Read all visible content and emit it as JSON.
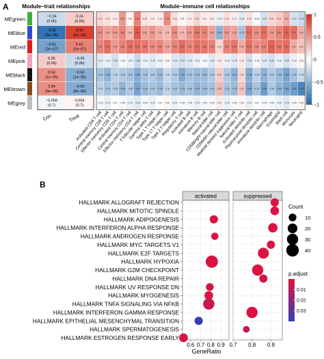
{
  "panel_a": {
    "letter": "A",
    "title_trait": "Module−trait relationships",
    "title_immune": "Module−immune cell relationships",
    "modules": [
      "MEgreen",
      "MEblue",
      "MEred",
      "MEpink",
      "MEblack",
      "MEbrown",
      "MEgrey"
    ],
    "module_colors": [
      "#3cae3c",
      "#2f4bd6",
      "#e11b1b",
      "#f2a2b8",
      "#111111",
      "#8b4a1c",
      "#bdbdbd"
    ],
    "trait_columns": [
      "Con",
      "Treat"
    ],
    "trait_cells": [
      [
        {
          "r": "−0.24",
          "p": "(0.06)",
          "v": -0.24
        },
        {
          "r": "0.24",
          "p": "(0.06)",
          "v": 0.24
        }
      ],
      [
        {
          "r": "−0.92",
          "p": "(5e−26)",
          "v": -0.92
        },
        {
          "r": "0.92",
          "p": "(5e−26)",
          "v": 0.92
        }
      ],
      [
        {
          "r": "−0.61",
          "p": "(2e−07)",
          "v": -0.61
        },
        {
          "r": "0.61",
          "p": "(2e−07)",
          "v": 0.61
        }
      ],
      [
        {
          "r": "0.25",
          "p": "(0.06)",
          "v": 0.25
        },
        {
          "r": "−0.25",
          "p": "(0.06)",
          "v": -0.25
        }
      ],
      [
        {
          "r": "0.53",
          "p": "(1e−05)",
          "v": 0.53
        },
        {
          "r": "−0.53",
          "p": "(1e−05)",
          "v": -0.53
        }
      ],
      [
        {
          "r": "0.54",
          "p": "(9e−06)",
          "v": 0.54
        },
        {
          "r": "−0.54",
          "p": "(9e−06)",
          "v": -0.54
        }
      ],
      [
        {
          "r": "−0.058",
          "p": "(0.7)",
          "v": -0.058
        },
        {
          "r": "0.058",
          "p": "(0.7)",
          "v": 0.058
        }
      ]
    ],
    "immune_cells": [
      "Activated CD8 T cell",
      "Central memory CD8 T cell",
      "Effector memeory CD8 T cell",
      "Activated CD4 T cell",
      "Central memory CD4 T cell",
      "Effector memeory CD4 T cell",
      "T follicular helper cell",
      "Gamma delta T cell",
      "Type 1 T helper cell",
      "Type 17 T helper cell",
      "Type 2 T helper cell",
      "Regulatory T cell",
      "Activated B cell",
      "Immature B cell",
      "Memory B cell",
      "Natural killer cell",
      "CD56bright natural killer cell",
      "CD56dim natural killer cell",
      "Myeloid derived suppressor cell",
      "Natural killer T cell",
      "Activated dendritic cell",
      "Plasmacytoid dendritic cell",
      "Immature dendritic cell",
      "Macrophage",
      "Eosinophil",
      "Mast cell",
      "Monocyte",
      "Neutrophil"
    ],
    "immune_values": [
      [
        0.2,
        0.15,
        0.1,
        0.5,
        0.05,
        0.6,
        0.15,
        0.1,
        0.1,
        0.55,
        0.15,
        0.05,
        0.1,
        0.2,
        0.1,
        0.1,
        -0.1,
        0.15,
        0.1,
        -0.15,
        0.15,
        -0.05,
        -0.2,
        0.2,
        0.25,
        0.4,
        -0.2,
        -0.25
      ],
      [
        0.55,
        0.45,
        0.5,
        0.6,
        0.35,
        0.8,
        0.45,
        0.5,
        0.4,
        0.35,
        0.55,
        0.35,
        0.5,
        0.65,
        0.6,
        0.45,
        -0.5,
        0.5,
        0.45,
        -0.4,
        0.7,
        0.55,
        0.7,
        0.5,
        0.6,
        0.75,
        0.7,
        0.4
      ],
      [
        0.6,
        0.7,
        0.5,
        0.6,
        0.7,
        0.7,
        0.65,
        0.55,
        0.6,
        0.45,
        0.6,
        0.7,
        0.6,
        0.7,
        0.65,
        0.6,
        0.2,
        0.6,
        0.65,
        0.4,
        0.7,
        0.55,
        0.6,
        0.75,
        0.65,
        0.7,
        0.4,
        0.3
      ],
      [
        -0.15,
        -0.1,
        -0.2,
        -0.05,
        -0.1,
        -0.25,
        -0.1,
        -0.15,
        -0.1,
        0.05,
        -0.15,
        -0.2,
        -0.15,
        -0.1,
        -0.05,
        -0.15,
        0.1,
        -0.1,
        -0.15,
        0.1,
        -0.2,
        -0.05,
        -0.15,
        -0.2,
        -0.1,
        -0.2,
        -0.1,
        0.05
      ],
      [
        -0.4,
        -0.5,
        -0.3,
        -0.35,
        -0.4,
        -0.55,
        -0.4,
        -0.35,
        -0.45,
        -0.25,
        -0.35,
        -0.55,
        -0.4,
        -0.45,
        -0.45,
        -0.35,
        0.25,
        -0.35,
        -0.5,
        0.2,
        -0.55,
        -0.3,
        -0.5,
        -0.35,
        -0.45,
        -0.6,
        -0.4,
        -0.25
      ],
      [
        -0.3,
        -0.4,
        -0.35,
        -0.5,
        -0.35,
        -0.6,
        -0.45,
        -0.4,
        -0.45,
        -0.3,
        -0.4,
        -0.45,
        -0.4,
        -0.5,
        -0.45,
        -0.4,
        0.35,
        -0.4,
        -0.45,
        0.3,
        -0.6,
        -0.4,
        -0.65,
        -0.35,
        -0.5,
        -0.6,
        -0.65,
        -0.8
      ],
      [
        -0.05,
        -0.1,
        0.0,
        -0.05,
        -0.1,
        -0.15,
        -0.05,
        -0.1,
        0.0,
        0.05,
        -0.1,
        -0.05,
        -0.05,
        -0.1,
        -0.05,
        -0.05,
        0.1,
        -0.1,
        -0.05,
        0.05,
        -0.1,
        0.0,
        -0.05,
        -0.05,
        -0.1,
        -0.15,
        -0.05,
        0.05
      ]
    ],
    "immune_cell_text": [
      [
        "0.20",
        "0.15",
        "0.10",
        "0.50",
        "0.05",
        "0.60",
        "0.15",
        "0.10",
        "0.10",
        "0.55",
        "0.15",
        "0.05",
        "0.10",
        "0.20",
        "0.10",
        "0.10",
        "−0.10",
        "0.15",
        "0.10",
        "−0.15",
        "0.15",
        "−0.05",
        "−0.20",
        "0.20",
        "0.25",
        "0.40",
        "−0.20",
        "−0.25"
      ],
      [
        "0.55",
        "0.45",
        "0.50",
        "0.60",
        "0.35",
        "0.80",
        "0.45",
        "0.50",
        "0.40",
        "0.35",
        "0.55",
        "0.35",
        "0.50",
        "0.65",
        "0.60",
        "0.45",
        "−0.50",
        "0.50",
        "0.45",
        "−0.40",
        "0.70",
        "0.55",
        "0.70",
        "0.50",
        "0.60",
        "0.75",
        "0.70",
        "0.40"
      ],
      [
        "0.60",
        "0.70",
        "0.50",
        "0.60",
        "0.70",
        "0.70",
        "0.65",
        "0.55",
        "0.60",
        "0.45",
        "0.60",
        "0.70",
        "0.60",
        "0.70",
        "0.65",
        "0.60",
        "0.20",
        "0.60",
        "0.65",
        "0.40",
        "0.70",
        "0.55",
        "0.60",
        "0.75",
        "0.65",
        "0.70",
        "0.40",
        "0.30"
      ],
      [
        "−0.15",
        "−0.10",
        "−0.20",
        "−0.05",
        "−0.10",
        "−0.25",
        "−0.10",
        "−0.15",
        "−0.10",
        "0.05",
        "−0.15",
        "−0.20",
        "−0.15",
        "−0.10",
        "−0.05",
        "−0.15",
        "0.10",
        "−0.10",
        "−0.15",
        "0.10",
        "−0.20",
        "−0.05",
        "−0.15",
        "−0.20",
        "−0.10",
        "−0.20",
        "−0.10",
        "0.05"
      ],
      [
        "−0.40",
        "−0.50",
        "−0.30",
        "−0.35",
        "−0.40",
        "−0.55",
        "−0.40",
        "−0.35",
        "−0.45",
        "−0.25",
        "−0.35",
        "−0.55",
        "−0.40",
        "−0.45",
        "−0.45",
        "−0.35",
        "0.25",
        "−0.35",
        "−0.50",
        "0.20",
        "−0.55",
        "−0.30",
        "−0.50",
        "−0.35",
        "−0.45",
        "−0.60",
        "−0.40",
        "−0.25"
      ],
      [
        "−0.30",
        "−0.40",
        "−0.35",
        "−0.50",
        "−0.35",
        "−0.60",
        "−0.45",
        "−0.40",
        "−0.45",
        "−0.30",
        "−0.40",
        "−0.45",
        "−0.40",
        "−0.50",
        "−0.45",
        "−0.40",
        "0.35",
        "−0.40",
        "−0.45",
        "0.30",
        "−0.60",
        "−0.40",
        "−0.65",
        "−0.35",
        "−0.50",
        "−0.60",
        "−0.65",
        "−0.80"
      ],
      [
        "−0.05",
        "−0.10",
        "0.00",
        "−0.05",
        "−0.10",
        "−0.15",
        "−0.05",
        "−0.10",
        "0.00",
        "0.05",
        "−0.10",
        "−0.05",
        "−0.05",
        "−0.10",
        "−0.05",
        "−0.05",
        "0.10",
        "−0.10",
        "−0.05",
        "0.05",
        "−0.10",
        "0.00",
        "−0.05",
        "−0.05",
        "−0.10",
        "−0.15",
        "−0.05",
        "0.05"
      ]
    ],
    "colorbar_ticks": [
      "1",
      "0.5",
      "0",
      "−0.5",
      "−1"
    ],
    "colorscale": {
      "neg": "#2166ac",
      "mid": "#ffffff",
      "pos": "#d7301f"
    }
  },
  "panel_b": {
    "letter": "B",
    "facets": [
      "activated",
      "suppressed"
    ],
    "pathways": [
      "HALLMARK ALLOGRAFT REJECTION",
      "HALLMARK MITOTIC SPINDLE",
      "HALLMARK ADIPOGENESIS",
      "HALLMARK INTERFERON ALPHA RESPONSE",
      "HALLMARK ANDROGEN RESPONSE",
      "HALLMARK MYC TARGETS V1",
      "HALLMARK E2F TARGETS",
      "HALLMARK HYPOXIA",
      "HALLMARK G2M CHECKPOINT",
      "HALLMARK DNA REPAIR",
      "HALLMARK UV RESPONSE DN",
      "HALLMARK MYOGENESIS",
      "HALLMARK TNFA SIGNALING VIA NFKB",
      "HALLMARK INTERFERON GAMMA RESPONSE",
      "HALLMARK EPITHELIAL MESENCHYMAL TRANSITION",
      "HALLMARK SPERMATOGENESIS",
      "HALLMARK ESTROGEN RESPONSE EARLY"
    ],
    "xlabel": "GeneRatio",
    "x_ticks_activated": [
      "0.6",
      "0.7",
      "0.8",
      "0.9"
    ],
    "x_ticks_suppressed": [
      "0.7",
      "0.8",
      "0.9"
    ],
    "legend_count_title": "Count",
    "legend_count_values": [
      "10",
      "20",
      "30",
      "40"
    ],
    "legend_padj_title": "p.adjust",
    "legend_padj_ticks": [
      "0.01",
      "0.02",
      "0.03"
    ],
    "padj_colors": {
      "low": "#e0113f",
      "high": "#3040b8"
    }
  },
  "chart_data": [
    {
      "type": "heatmap",
      "title": "Module−trait relationships",
      "rows": [
        "MEgreen",
        "MEblue",
        "MEred",
        "MEpink",
        "MEblack",
        "MEbrown",
        "MEgrey"
      ],
      "columns": [
        "Con",
        "Treat"
      ],
      "values": [
        [
          -0.24,
          0.24
        ],
        [
          -0.92,
          0.92
        ],
        [
          -0.61,
          0.61
        ],
        [
          0.25,
          -0.25
        ],
        [
          0.53,
          -0.53
        ],
        [
          0.54,
          -0.54
        ],
        [
          -0.058,
          0.058
        ]
      ],
      "pvalues": [
        [
          "0.06",
          "0.06"
        ],
        [
          "5e−26",
          "5e−26"
        ],
        [
          "2e−07",
          "2e−07"
        ],
        [
          "0.06",
          "0.06"
        ],
        [
          "1e−05",
          "1e−05"
        ],
        [
          "9e−06",
          "9e−06"
        ],
        [
          "0.7",
          "0.7"
        ]
      ],
      "color_range": [
        -1,
        1
      ]
    },
    {
      "type": "heatmap",
      "title": "Module−immune cell relationships",
      "rows": [
        "MEgreen",
        "MEblue",
        "MEred",
        "MEpink",
        "MEblack",
        "MEbrown",
        "MEgrey"
      ],
      "columns": "see panel_a.immune_cells",
      "values": "see panel_a.immune_values",
      "color_range": [
        -1,
        1
      ]
    },
    {
      "type": "scatter",
      "xlabel": "GeneRatio",
      "facets": [
        "activated",
        "suppressed"
      ],
      "points": [
        {
          "pathway": "HALLMARK ALLOGRAFT REJECTION",
          "facet": "suppressed",
          "x": 0.92,
          "count": 12,
          "padj": 0.001
        },
        {
          "pathway": "HALLMARK MITOTIC SPINDLE",
          "facet": "suppressed",
          "x": 0.92,
          "count": 14,
          "padj": 0.001
        },
        {
          "pathway": "HALLMARK ADIPOGENESIS",
          "facet": "activated",
          "x": 0.83,
          "count": 12,
          "padj": 0.001
        },
        {
          "pathway": "HALLMARK INTERFERON ALPHA RESPONSE",
          "facet": "suppressed",
          "x": 0.91,
          "count": 18,
          "padj": 0.001
        },
        {
          "pathway": "HALLMARK ANDROGEN RESPONSE",
          "facet": "activated",
          "x": 0.84,
          "count": 8,
          "padj": 0.002
        },
        {
          "pathway": "HALLMARK MYC TARGETS V1",
          "facet": "suppressed",
          "x": 0.9,
          "count": 12,
          "padj": 0.001
        },
        {
          "pathway": "HALLMARK E2F TARGETS",
          "facet": "suppressed",
          "x": 0.86,
          "count": 28,
          "padj": 0.001
        },
        {
          "pathway": "HALLMARK HYPOXIA",
          "facet": "activated",
          "x": 0.81,
          "count": 38,
          "padj": 0.001
        },
        {
          "pathway": "HALLMARK G2M CHECKPOINT",
          "facet": "suppressed",
          "x": 0.83,
          "count": 30,
          "padj": 0.001
        },
        {
          "pathway": "HALLMARK DNA REPAIR",
          "facet": "suppressed",
          "x": 0.86,
          "count": 12,
          "padj": 0.002
        },
        {
          "pathway": "HALLMARK UV RESPONSE DN",
          "facet": "activated",
          "x": 0.79,
          "count": 10,
          "padj": 0.002
        },
        {
          "pathway": "HALLMARK MYOGENESIS",
          "facet": "activated",
          "x": 0.78,
          "count": 14,
          "padj": 0.001
        },
        {
          "pathway": "HALLMARK TNFA SIGNALING VIA NFKB",
          "facet": "activated",
          "x": 0.78,
          "count": 30,
          "padj": 0.005
        },
        {
          "pathway": "HALLMARK INTERFERON GAMMA RESPONSE",
          "facet": "suppressed",
          "x": 0.8,
          "count": 30,
          "padj": 0.001
        },
        {
          "pathway": "HALLMARK EPITHELIAL MESENCHYMAL TRANSITION",
          "facet": "activated",
          "x": 0.68,
          "count": 12,
          "padj": 0.038
        },
        {
          "pathway": "HALLMARK SPERMATOGENESIS",
          "facet": "suppressed",
          "x": 0.77,
          "count": 6,
          "padj": 0.006
        },
        {
          "pathway": "HALLMARK ESTROGEN RESPONSE EARLY",
          "facet": "activated",
          "x": 0.53,
          "count": 14,
          "padj": 0.002
        }
      ],
      "facet_xlim": {
        "activated": [
          0.52,
          0.98
        ],
        "suppressed": [
          0.7,
          0.96
        ]
      },
      "padj_range": [
        0.0,
        0.04
      ],
      "count_range": [
        5,
        40
      ]
    }
  ]
}
